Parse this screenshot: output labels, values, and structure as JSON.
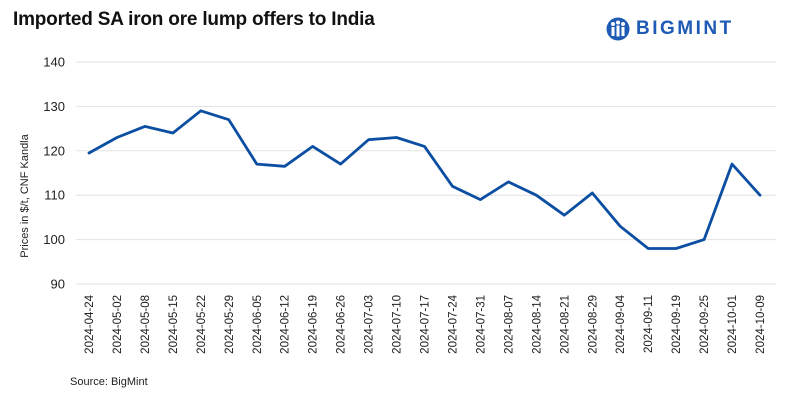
{
  "brand": {
    "name": "BIGMINT",
    "color": "#1f5bb5"
  },
  "source": "Source: BigMint",
  "chart_data": {
    "type": "line",
    "title": "Imported SA iron ore lump offers to India",
    "xlabel": "",
    "ylabel": "Prices in $/t, CNF Kandla",
    "ylim": [
      90,
      140
    ],
    "yticks": [
      90,
      100,
      110,
      120,
      130,
      140
    ],
    "grid": true,
    "line_color": "#0b4ea2",
    "categories": [
      "2024-04-24",
      "2024-05-02",
      "2024-05-08",
      "2024-05-15",
      "2024-05-22",
      "2024-05-29",
      "2024-06-05",
      "2024-06-12",
      "2024-06-19",
      "2024-06-26",
      "2024-07-03",
      "2024-07-10",
      "2024-07-17",
      "2024-07-24",
      "2024-07-31",
      "2024-08-07",
      "2024-08-14",
      "2024-08-21",
      "2024-08-29",
      "2024-09-04",
      "2024-09-11",
      "2024-09-19",
      "2024-09-25",
      "2024-10-01",
      "2024-10-09"
    ],
    "series": [
      {
        "name": "SA iron ore lump",
        "values": [
          119.5,
          123,
          125.5,
          124,
          129,
          127,
          117,
          116.5,
          121,
          117,
          122.5,
          123,
          121,
          112,
          109,
          113,
          110,
          105.5,
          110.5,
          103,
          98,
          98,
          100,
          117,
          110
        ]
      }
    ]
  }
}
